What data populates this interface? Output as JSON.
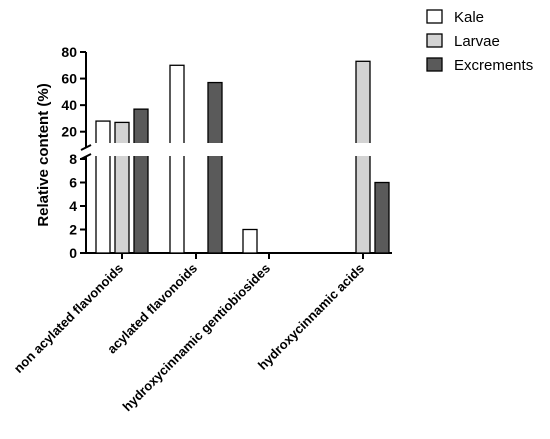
{
  "chart_data": {
    "type": "bar",
    "title": "",
    "xlabel": "",
    "ylabel": "Relative content (%)",
    "categories": [
      "non acylated flavonoids",
      "acylated flavonoids",
      "hydroxycinnamic gentiobiosides",
      "hydroxycinnamic acids"
    ],
    "series": [
      {
        "name": "Kale",
        "color": "#ffffff",
        "values": [
          28,
          70,
          2,
          0
        ]
      },
      {
        "name": "Larvae",
        "color": "#d3d3d3",
        "values": [
          27,
          0,
          0,
          73
        ]
      },
      {
        "name": "Excrements",
        "color": "#5a5a5a",
        "values": [
          37,
          57,
          0,
          6
        ]
      }
    ],
    "y_axis_broken": true,
    "y_lower_segment": {
      "range": [
        0,
        8
      ],
      "ticks": [
        "0",
        "2",
        "4",
        "6",
        "8"
      ]
    },
    "y_upper_segment": {
      "range": [
        13,
        80
      ],
      "ticks": [
        "20",
        "40",
        "60",
        "80"
      ]
    },
    "grid": false,
    "legend_position": "top-right"
  }
}
